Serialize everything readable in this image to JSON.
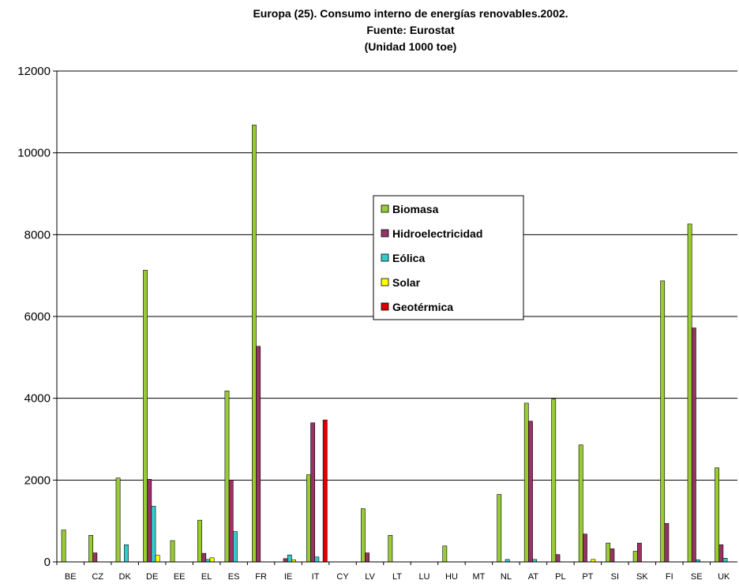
{
  "chart_data": {
    "type": "bar",
    "title": [
      "Europa (25). Consumo interno  de energías renovables.2002.",
      "Fuente: Eurostat",
      "(Unidad 1000 toe)"
    ],
    "ylim": [
      0,
      12000
    ],
    "yticks": [
      "0",
      "2000",
      "4000",
      "6000",
      "8000",
      "10000",
      "12000"
    ],
    "grid": "horizontal",
    "legend_position": "center",
    "categories": [
      "BE",
      "CZ",
      "DK",
      "DE",
      "EE",
      "EL",
      "ES",
      "FR",
      "IE",
      "IT",
      "CY",
      "LV",
      "LT",
      "LU",
      "HU",
      "MT",
      "NL",
      "AT",
      "PL",
      "PT",
      "SI",
      "SK",
      "FI",
      "SE",
      "UK"
    ],
    "series": [
      {
        "name": "Biomasa",
        "color": "#99cc33",
        "values": [
          780,
          650,
          2050,
          7130,
          520,
          1020,
          4180,
          10680,
          0,
          2130,
          0,
          1300,
          650,
          0,
          390,
          0,
          1650,
          3880,
          3980,
          2860,
          460,
          260,
          6870,
          8260,
          2300
        ]
      },
      {
        "name": "Hidroelectricidad",
        "color": "#993366",
        "values": [
          0,
          220,
          0,
          2020,
          0,
          210,
          2000,
          5270,
          80,
          3400,
          0,
          220,
          0,
          0,
          0,
          0,
          0,
          3440,
          180,
          680,
          320,
          460,
          940,
          5720,
          420
        ]
      },
      {
        "name": "Eólica",
        "color": "#33cccc",
        "values": [
          0,
          0,
          420,
          1360,
          0,
          60,
          740,
          0,
          170,
          120,
          0,
          0,
          0,
          0,
          0,
          0,
          60,
          60,
          0,
          0,
          0,
          0,
          0,
          50,
          90
        ]
      },
      {
        "name": "Solar",
        "color": "#ffff00",
        "values": [
          0,
          0,
          0,
          160,
          0,
          100,
          0,
          0,
          50,
          0,
          0,
          0,
          0,
          0,
          0,
          0,
          0,
          0,
          0,
          60,
          0,
          0,
          0,
          0,
          0
        ]
      },
      {
        "name": "Geotérmica",
        "color": "#dd0000",
        "values": [
          0,
          0,
          0,
          0,
          0,
          0,
          0,
          0,
          0,
          3470,
          0,
          0,
          0,
          0,
          0,
          0,
          0,
          0,
          0,
          0,
          0,
          0,
          0,
          0,
          0
        ]
      }
    ]
  }
}
